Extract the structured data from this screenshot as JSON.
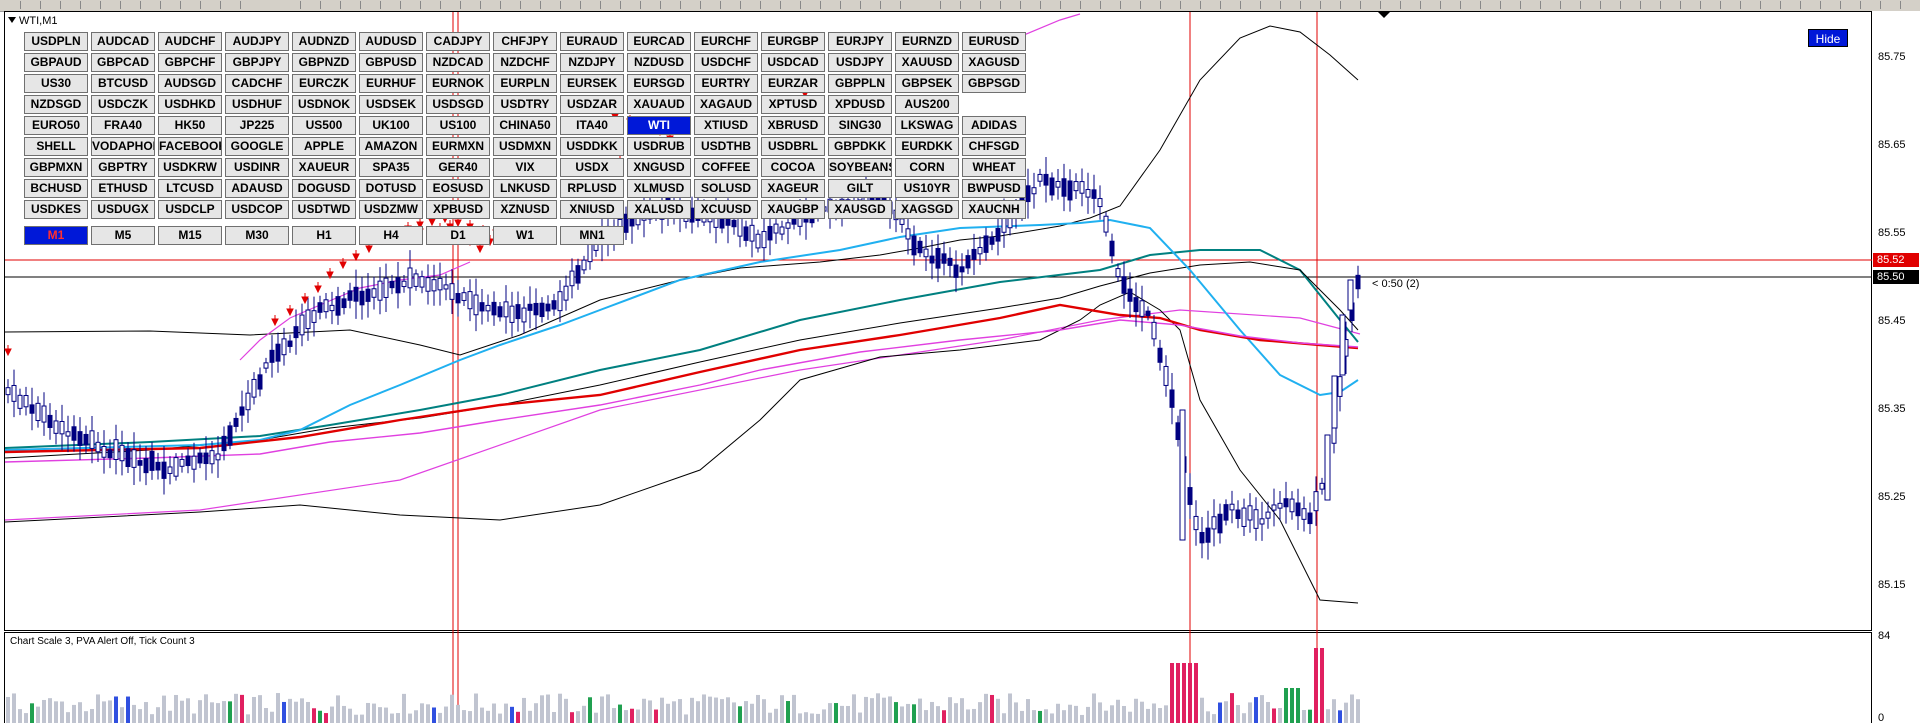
{
  "window": {
    "title": "WTI,M1"
  },
  "hide_label": "Hide",
  "symbols": [
    [
      "USDPLN",
      "AUDCAD",
      "AUDCHF",
      "AUDJPY",
      "AUDNZD",
      "AUDUSD",
      "CADJPY",
      "CHFJPY",
      "EURAUD",
      "EURCAD",
      "EURCHF",
      "EURGBP",
      "EURJPY",
      "EURNZD",
      "EURUSD"
    ],
    [
      "GBPAUD",
      "GBPCAD",
      "GBPCHF",
      "GBPJPY",
      "GBPNZD",
      "GBPUSD",
      "NZDCAD",
      "NZDCHF",
      "NZDJPY",
      "NZDUSD",
      "USDCHF",
      "USDCAD",
      "USDJPY",
      "XAUUSD",
      "XAGUSD"
    ],
    [
      "US30",
      "BTCUSD",
      "AUDSGD",
      "CADCHF",
      "EURCZK",
      "EURHUF",
      "EURNOK",
      "EURPLN",
      "EURSEK",
      "EURSGD",
      "EURTRY",
      "EURZAR",
      "GBPPLN",
      "GBPSEK",
      "GBPSGD"
    ],
    [
      "NZDSGD",
      "USDCZK",
      "USDHKD",
      "USDHUF",
      "USDNOK",
      "USDSEK",
      "USDSGD",
      "USDTRY",
      "USDZAR",
      "XAUAUD",
      "XAGAUD",
      "XPTUSD",
      "XPDUSD",
      "AUS200"
    ],
    [
      "EURO50",
      "FRA40",
      "HK50",
      "JP225",
      "US500",
      "UK100",
      "US100",
      "CHINA50",
      "ITA40",
      "WTI",
      "XTIUSD",
      "XBRUSD",
      "SING30",
      "LKSWAG",
      "ADIDAS"
    ],
    [
      "SHELL",
      "VODAPHONE",
      "FACEBOOK",
      "GOOGLE",
      "APPLE",
      "AMAZON",
      "EURMXN",
      "USDMXN",
      "USDDKK",
      "USDRUB",
      "USDTHB",
      "USDBRL",
      "GBPDKK",
      "EURDKK",
      "CHFSGD"
    ],
    [
      "GBPMXN",
      "GBPTRY",
      "USDKRW",
      "USDINR",
      "XAUEUR",
      "SPA35",
      "GER40",
      "VIX",
      "USDX",
      "XNGUSD",
      "COFFEE",
      "COCOA",
      "SOYBEANS",
      "CORN",
      "WHEAT"
    ],
    [
      "BCHUSD",
      "ETHUSD",
      "LTCUSD",
      "ADAUSD",
      "DOGUSD",
      "DOTUSD",
      "EOSUSD",
      "LNKUSD",
      "RPLUSD",
      "XLMUSD",
      "SOLUSD",
      "XAGEUR",
      "GILT",
      "US10YR",
      "BWPUSD"
    ],
    [
      "USDKES",
      "USDUGX",
      "USDCLP",
      "USDCOP",
      "USDTWD",
      "USDZMW",
      "XPBUSD",
      "XZNUSD",
      "XNIUSD",
      "XALUSD",
      "XCUUSD",
      "XAUGBP",
      "XAUSGD",
      "XAGSGD",
      "XAUCNH"
    ]
  ],
  "selected_symbol": "WTI",
  "timeframes": [
    "M1",
    "M5",
    "M15",
    "M30",
    "H1",
    "H4",
    "D1",
    "W1",
    "MN1"
  ],
  "selected_timeframe": "M1",
  "price_axis": {
    "labels": [
      "85.75",
      "85.65",
      "85.55",
      "85.45",
      "85.35",
      "85.25",
      "85.15"
    ],
    "bid_tag": "85.52",
    "last_tag": "85.50"
  },
  "volume_axis": {
    "max": "84",
    "min": "0"
  },
  "countdown": "< 0:50 (2)",
  "volume_info": "Chart Scale  3,   PVA Alert Off,   Tick Count  3",
  "colors": {
    "selected_button": "#0018d8",
    "bid_line": "#e00000",
    "candle": "#000080",
    "ma_red": "#e00000",
    "ma_teal": "#008080",
    "ma_cyan": "#20b0f0",
    "ma_magenta": "#e040e0",
    "bands": "#000000",
    "vol_grey": "#c0c4d0",
    "vol_red": "#e02060",
    "vol_green": "#20a050",
    "vol_blue": "#3050e0"
  }
}
